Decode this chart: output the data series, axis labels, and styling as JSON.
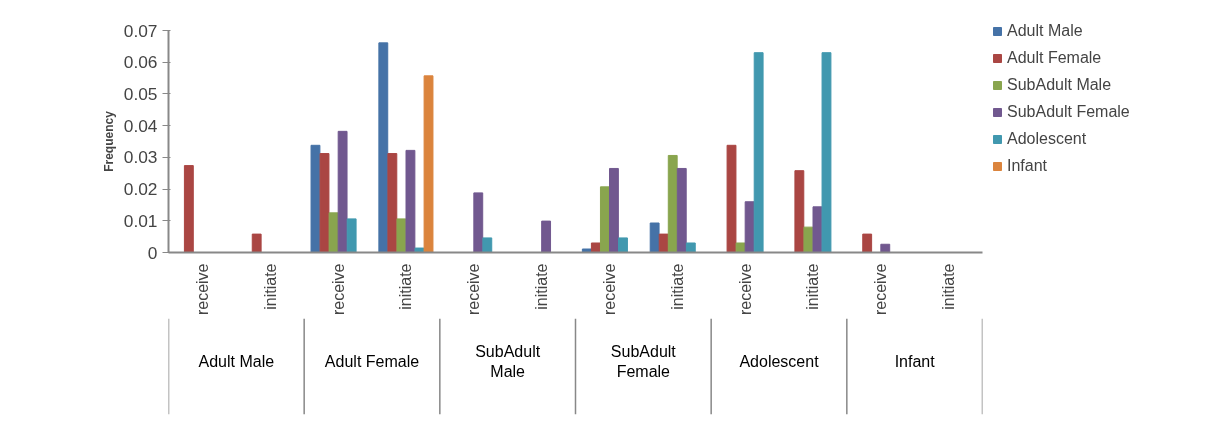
{
  "chart_data": {
    "type": "bar",
    "ylabel": "Frequency",
    "categories": [
      "receive",
      "initiate",
      "receive",
      "initiate",
      "receive",
      "initiate",
      "receive",
      "initiate",
      "receive",
      "initiate",
      "receive",
      "initiate"
    ],
    "annotations": [
      "Adult Male",
      "Adult Female",
      "SubAdult Male",
      "SubAdult Female",
      "Adolescent",
      "Infant"
    ],
    "series": [
      {
        "name": "Adult Male",
        "color": "#4572a7",
        "values": [
          null,
          null,
          0.0338,
          0.0661,
          null,
          null,
          0.0011,
          0.0093,
          null,
          null,
          null,
          null
        ]
      },
      {
        "name": "Adult Female",
        "color": "#aa4643",
        "values": [
          0.0274,
          0.0058,
          0.0312,
          0.0312,
          null,
          null,
          0.003,
          0.0058,
          0.0338,
          0.0258,
          0.0058,
          null
        ]
      },
      {
        "name": "SubAdult Male",
        "color": "#89a54e",
        "values": [
          null,
          null,
          0.0125,
          0.0106,
          null,
          null,
          0.0207,
          0.0306,
          0.003,
          0.008,
          null,
          null
        ]
      },
      {
        "name": "SubAdult Female",
        "color": "#71588f",
        "values": [
          null,
          null,
          0.0382,
          0.0322,
          0.0188,
          0.0099,
          0.0265,
          0.0265,
          0.016,
          0.0144,
          0.0026,
          null
        ]
      },
      {
        "name": "Adolescent",
        "color": "#4198af",
        "values": [
          null,
          null,
          0.0106,
          0.0014,
          0.0046,
          null,
          0.0046,
          0.003,
          0.063,
          0.063,
          null,
          null
        ]
      },
      {
        "name": "Infant",
        "color": "#db843d",
        "values": [
          null,
          null,
          null,
          0.0557,
          null,
          null,
          null,
          null,
          null,
          null,
          null,
          null
        ]
      }
    ],
    "ylim": [
      0,
      0.07
    ],
    "yticks": [
      0,
      0.01,
      0.02,
      0.03,
      0.04,
      0.05,
      0.06,
      0.07
    ],
    "grid": false,
    "legend": "top right"
  }
}
